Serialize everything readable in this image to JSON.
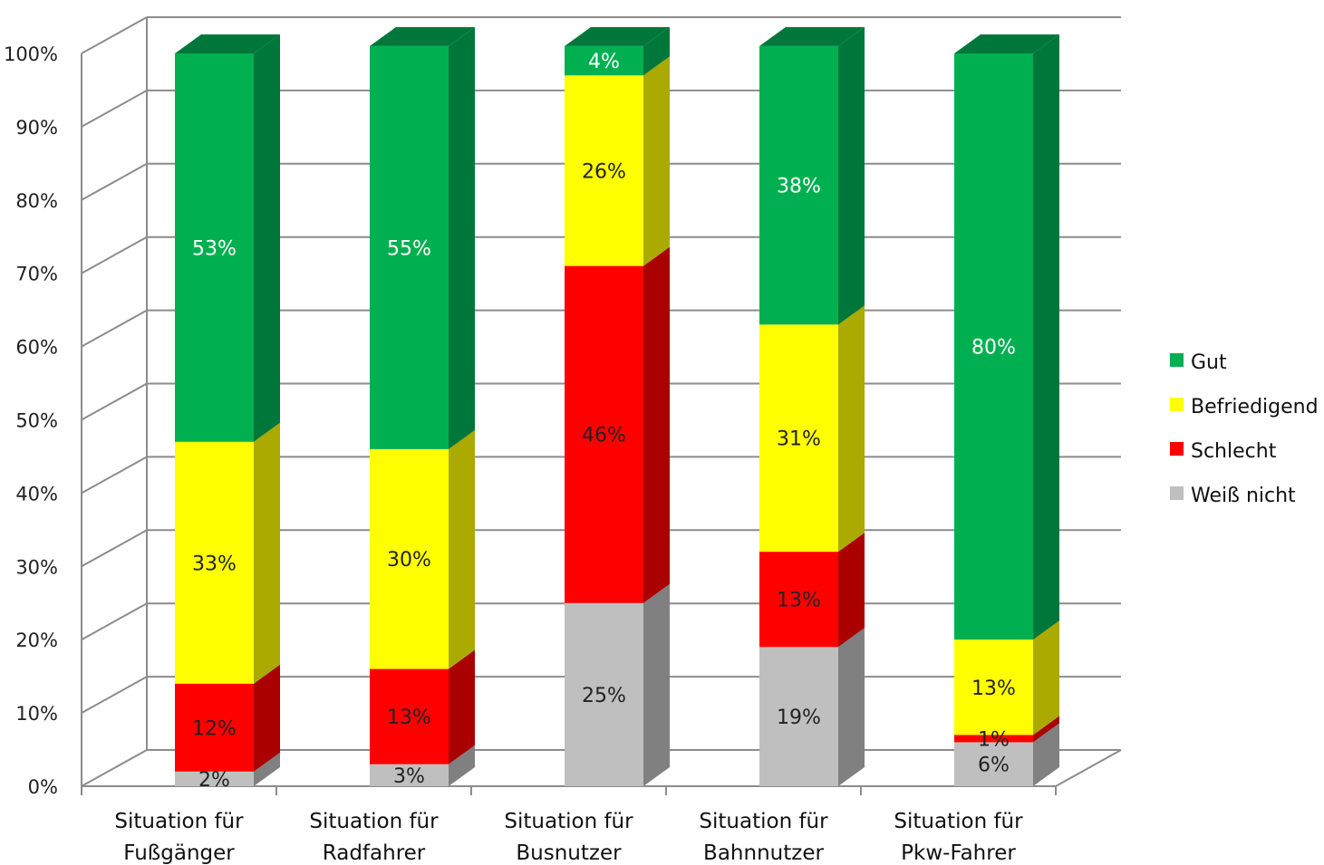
{
  "chart_data": {
    "type": "bar",
    "stacked": true,
    "three_d": true,
    "ylim": [
      0,
      100
    ],
    "y_ticks": [
      "0%",
      "10%",
      "20%",
      "30%",
      "40%",
      "50%",
      "60%",
      "70%",
      "80%",
      "90%",
      "100%"
    ],
    "grid": true,
    "legend_position": "right",
    "categories": [
      [
        "Situation für",
        "Fußgänger"
      ],
      [
        "Situation für",
        "Radfahrer"
      ],
      [
        "Situation für",
        "Busnutzer"
      ],
      [
        "Situation für",
        "Bahnnutzer"
      ],
      [
        "Situation für",
        "Pkw-Fahrer"
      ]
    ],
    "series": [
      {
        "name": "Weiß nicht",
        "color": "#bfbfbf",
        "side_color": "#808080",
        "label_color": "#222222",
        "values": [
          2,
          3,
          25,
          19,
          6
        ],
        "labels": [
          "2%",
          "3%",
          "25%",
          "19%",
          "6%"
        ]
      },
      {
        "name": "Schlecht",
        "color": "#ff0000",
        "side_color": "#aa0000",
        "label_color": "#222222",
        "values": [
          12,
          13,
          46,
          13,
          1
        ],
        "labels": [
          "12%",
          "13%",
          "46%",
          "13%",
          "1%"
        ]
      },
      {
        "name": "Befriedigend",
        "color": "#ffff00",
        "side_color": "#aaaa00",
        "label_color": "#222222",
        "values": [
          33,
          30,
          26,
          31,
          13
        ],
        "labels": [
          "33%",
          "30%",
          "26%",
          "31%",
          "13%"
        ]
      },
      {
        "name": "Gut",
        "color": "#00b050",
        "side_color": "#00773a",
        "label_color": "#ffffff",
        "values": [
          53,
          55,
          4,
          38,
          80
        ],
        "labels": [
          "53%",
          "55%",
          "4%",
          "38%",
          "80%"
        ]
      }
    ],
    "legend_order": [
      "Gut",
      "Befriedigend",
      "Schlecht",
      "Weiß nicht"
    ]
  }
}
